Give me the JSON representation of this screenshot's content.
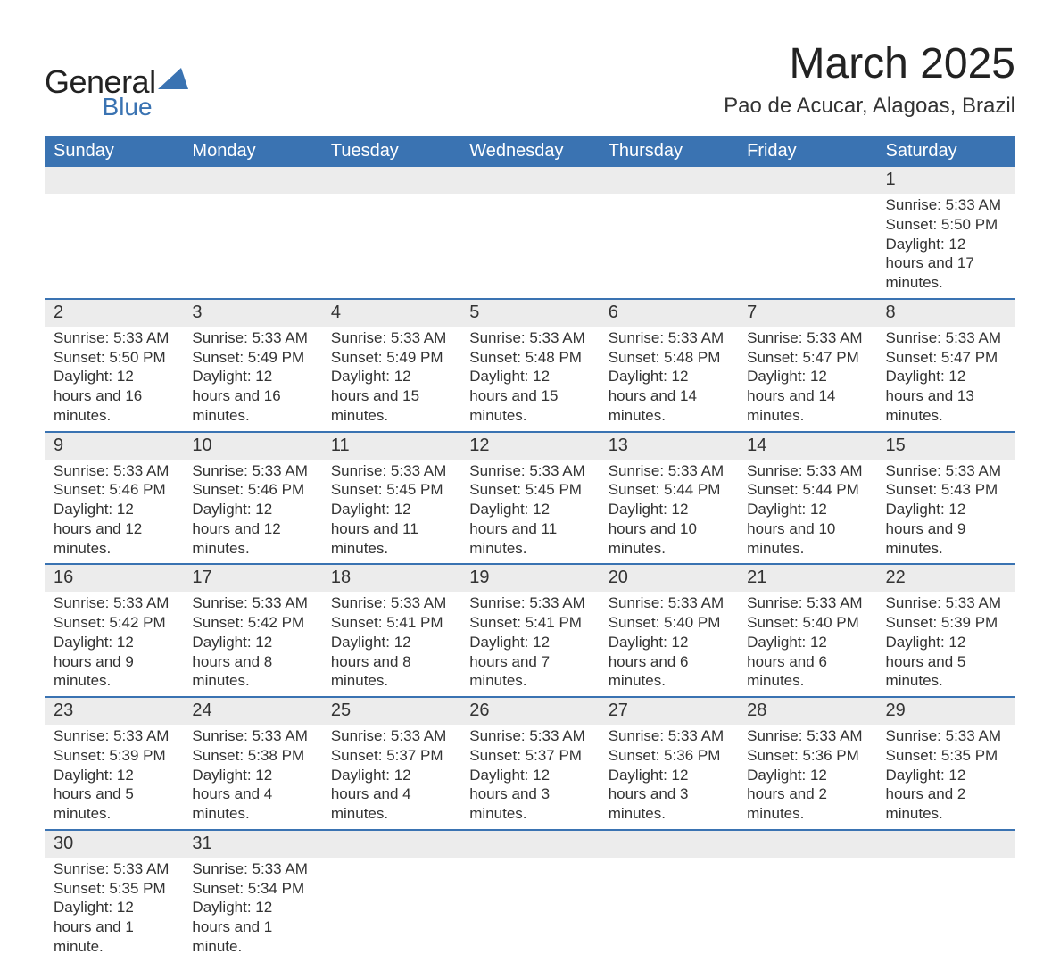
{
  "logo": {
    "line1": "General",
    "line2": "Blue",
    "shape_color": "#3a73b2"
  },
  "title": "March 2025",
  "location": "Pao de Acucar, Alagoas, Brazil",
  "colors": {
    "header_bg": "#3a73b2",
    "header_text": "#ffffff",
    "daynum_bg": "#ececec",
    "row_divider": "#3a73b2",
    "body_text": "#333333"
  },
  "weekdays": [
    "Sunday",
    "Monday",
    "Tuesday",
    "Wednesday",
    "Thursday",
    "Friday",
    "Saturday"
  ],
  "weeks": [
    [
      {
        "day": "",
        "lines": []
      },
      {
        "day": "",
        "lines": []
      },
      {
        "day": "",
        "lines": []
      },
      {
        "day": "",
        "lines": []
      },
      {
        "day": "",
        "lines": []
      },
      {
        "day": "",
        "lines": []
      },
      {
        "day": "1",
        "lines": [
          "Sunrise: 5:33 AM",
          "Sunset: 5:50 PM",
          "Daylight: 12 hours and 17 minutes."
        ]
      }
    ],
    [
      {
        "day": "2",
        "lines": [
          "Sunrise: 5:33 AM",
          "Sunset: 5:50 PM",
          "Daylight: 12 hours and 16 minutes."
        ]
      },
      {
        "day": "3",
        "lines": [
          "Sunrise: 5:33 AM",
          "Sunset: 5:49 PM",
          "Daylight: 12 hours and 16 minutes."
        ]
      },
      {
        "day": "4",
        "lines": [
          "Sunrise: 5:33 AM",
          "Sunset: 5:49 PM",
          "Daylight: 12 hours and 15 minutes."
        ]
      },
      {
        "day": "5",
        "lines": [
          "Sunrise: 5:33 AM",
          "Sunset: 5:48 PM",
          "Daylight: 12 hours and 15 minutes."
        ]
      },
      {
        "day": "6",
        "lines": [
          "Sunrise: 5:33 AM",
          "Sunset: 5:48 PM",
          "Daylight: 12 hours and 14 minutes."
        ]
      },
      {
        "day": "7",
        "lines": [
          "Sunrise: 5:33 AM",
          "Sunset: 5:47 PM",
          "Daylight: 12 hours and 14 minutes."
        ]
      },
      {
        "day": "8",
        "lines": [
          "Sunrise: 5:33 AM",
          "Sunset: 5:47 PM",
          "Daylight: 12 hours and 13 minutes."
        ]
      }
    ],
    [
      {
        "day": "9",
        "lines": [
          "Sunrise: 5:33 AM",
          "Sunset: 5:46 PM",
          "Daylight: 12 hours and 12 minutes."
        ]
      },
      {
        "day": "10",
        "lines": [
          "Sunrise: 5:33 AM",
          "Sunset: 5:46 PM",
          "Daylight: 12 hours and 12 minutes."
        ]
      },
      {
        "day": "11",
        "lines": [
          "Sunrise: 5:33 AM",
          "Sunset: 5:45 PM",
          "Daylight: 12 hours and 11 minutes."
        ]
      },
      {
        "day": "12",
        "lines": [
          "Sunrise: 5:33 AM",
          "Sunset: 5:45 PM",
          "Daylight: 12 hours and 11 minutes."
        ]
      },
      {
        "day": "13",
        "lines": [
          "Sunrise: 5:33 AM",
          "Sunset: 5:44 PM",
          "Daylight: 12 hours and 10 minutes."
        ]
      },
      {
        "day": "14",
        "lines": [
          "Sunrise: 5:33 AM",
          "Sunset: 5:44 PM",
          "Daylight: 12 hours and 10 minutes."
        ]
      },
      {
        "day": "15",
        "lines": [
          "Sunrise: 5:33 AM",
          "Sunset: 5:43 PM",
          "Daylight: 12 hours and 9 minutes."
        ]
      }
    ],
    [
      {
        "day": "16",
        "lines": [
          "Sunrise: 5:33 AM",
          "Sunset: 5:42 PM",
          "Daylight: 12 hours and 9 minutes."
        ]
      },
      {
        "day": "17",
        "lines": [
          "Sunrise: 5:33 AM",
          "Sunset: 5:42 PM",
          "Daylight: 12 hours and 8 minutes."
        ]
      },
      {
        "day": "18",
        "lines": [
          "Sunrise: 5:33 AM",
          "Sunset: 5:41 PM",
          "Daylight: 12 hours and 8 minutes."
        ]
      },
      {
        "day": "19",
        "lines": [
          "Sunrise: 5:33 AM",
          "Sunset: 5:41 PM",
          "Daylight: 12 hours and 7 minutes."
        ]
      },
      {
        "day": "20",
        "lines": [
          "Sunrise: 5:33 AM",
          "Sunset: 5:40 PM",
          "Daylight: 12 hours and 6 minutes."
        ]
      },
      {
        "day": "21",
        "lines": [
          "Sunrise: 5:33 AM",
          "Sunset: 5:40 PM",
          "Daylight: 12 hours and 6 minutes."
        ]
      },
      {
        "day": "22",
        "lines": [
          "Sunrise: 5:33 AM",
          "Sunset: 5:39 PM",
          "Daylight: 12 hours and 5 minutes."
        ]
      }
    ],
    [
      {
        "day": "23",
        "lines": [
          "Sunrise: 5:33 AM",
          "Sunset: 5:39 PM",
          "Daylight: 12 hours and 5 minutes."
        ]
      },
      {
        "day": "24",
        "lines": [
          "Sunrise: 5:33 AM",
          "Sunset: 5:38 PM",
          "Daylight: 12 hours and 4 minutes."
        ]
      },
      {
        "day": "25",
        "lines": [
          "Sunrise: 5:33 AM",
          "Sunset: 5:37 PM",
          "Daylight: 12 hours and 4 minutes."
        ]
      },
      {
        "day": "26",
        "lines": [
          "Sunrise: 5:33 AM",
          "Sunset: 5:37 PM",
          "Daylight: 12 hours and 3 minutes."
        ]
      },
      {
        "day": "27",
        "lines": [
          "Sunrise: 5:33 AM",
          "Sunset: 5:36 PM",
          "Daylight: 12 hours and 3 minutes."
        ]
      },
      {
        "day": "28",
        "lines": [
          "Sunrise: 5:33 AM",
          "Sunset: 5:36 PM",
          "Daylight: 12 hours and 2 minutes."
        ]
      },
      {
        "day": "29",
        "lines": [
          "Sunrise: 5:33 AM",
          "Sunset: 5:35 PM",
          "Daylight: 12 hours and 2 minutes."
        ]
      }
    ],
    [
      {
        "day": "30",
        "lines": [
          "Sunrise: 5:33 AM",
          "Sunset: 5:35 PM",
          "Daylight: 12 hours and 1 minute."
        ]
      },
      {
        "day": "31",
        "lines": [
          "Sunrise: 5:33 AM",
          "Sunset: 5:34 PM",
          "Daylight: 12 hours and 1 minute."
        ]
      },
      {
        "day": "",
        "lines": []
      },
      {
        "day": "",
        "lines": []
      },
      {
        "day": "",
        "lines": []
      },
      {
        "day": "",
        "lines": []
      },
      {
        "day": "",
        "lines": []
      }
    ]
  ]
}
